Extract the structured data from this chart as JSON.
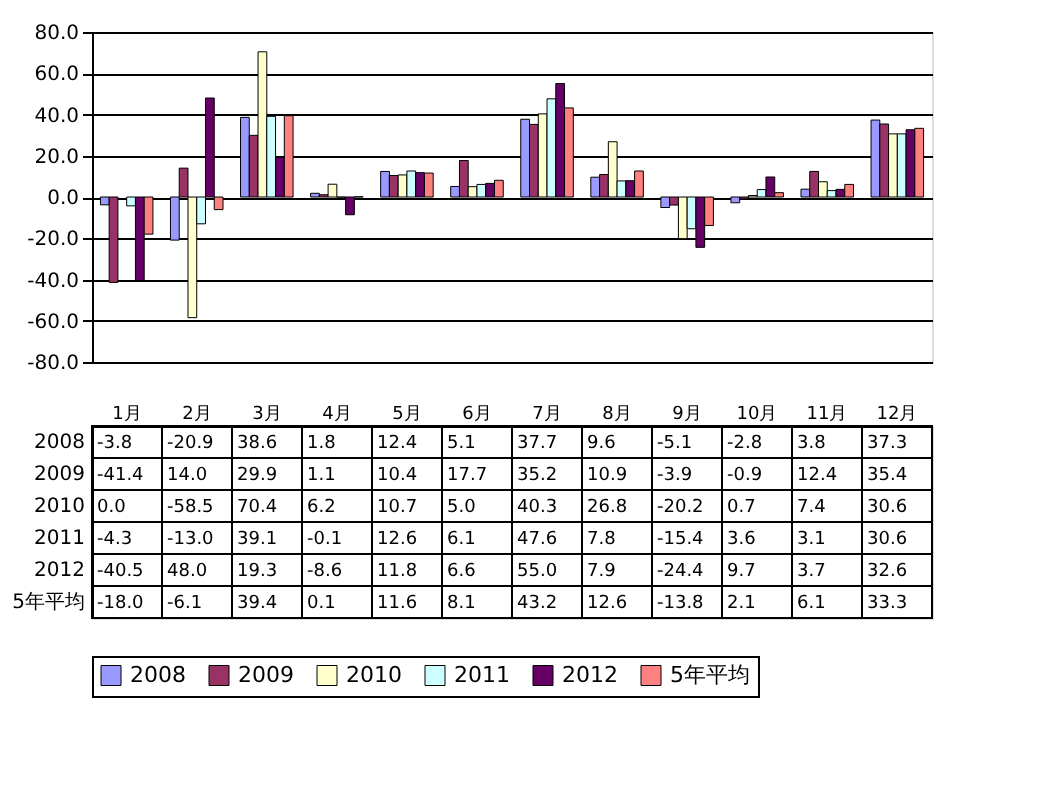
{
  "chart_data": {
    "type": "bar",
    "categories": [
      "1月",
      "2月",
      "3月",
      "4月",
      "5月",
      "6月",
      "7月",
      "8月",
      "9月",
      "10月",
      "11月",
      "12月"
    ],
    "series": [
      {
        "name": "2008",
        "color": "#9999ff",
        "values": [
          -3.8,
          -20.9,
          38.6,
          1.8,
          12.4,
          5.1,
          37.7,
          9.6,
          -5.1,
          -2.8,
          3.8,
          37.3
        ],
        "value_labels": [
          "-3.8",
          "-20.9",
          "38.6",
          "1.8",
          "12.4",
          "5.1",
          "37.7",
          "9.6",
          "-5.1",
          "-2.8",
          "3.8",
          "37.3"
        ]
      },
      {
        "name": "2009",
        "color": "#993366",
        "values": [
          -41.4,
          14.0,
          29.9,
          1.1,
          10.4,
          17.7,
          35.2,
          10.9,
          -3.9,
          -0.9,
          12.4,
          35.4
        ],
        "value_labels": [
          "-41.4",
          "14.0",
          "29.9",
          "1.1",
          "10.4",
          "17.7",
          "35.2",
          "10.9",
          "-3.9",
          "-0.9",
          "12.4",
          "35.4"
        ]
      },
      {
        "name": "2010",
        "color": "#ffffcc",
        "values": [
          0.0,
          -58.5,
          70.4,
          6.2,
          10.7,
          5.0,
          40.3,
          26.8,
          -20.2,
          0.7,
          7.4,
          30.6
        ],
        "value_labels": [
          "0.0",
          "-58.5",
          "70.4",
          "6.2",
          "10.7",
          "5.0",
          "40.3",
          "26.8",
          "-20.2",
          "0.7",
          "7.4",
          "30.6"
        ]
      },
      {
        "name": "2011",
        "color": "#ccffff",
        "values": [
          -4.3,
          -13.0,
          39.1,
          -0.1,
          12.6,
          6.1,
          47.6,
          7.8,
          -15.4,
          3.6,
          3.1,
          30.6
        ],
        "value_labels": [
          "-4.3",
          "-13.0",
          "39.1",
          "-0.1",
          "12.6",
          "6.1",
          "47.6",
          "7.8",
          "-15.4",
          "3.6",
          "3.1",
          "30.6"
        ]
      },
      {
        "name": "2012",
        "color": "#660066",
        "values": [
          -40.5,
          48.0,
          19.3,
          -8.6,
          11.8,
          6.6,
          55.0,
          7.9,
          -24.4,
          9.7,
          3.7,
          32.6
        ],
        "value_labels": [
          "-40.5",
          "48.0",
          "19.3",
          "-8.6",
          "11.8",
          "6.6",
          "55.0",
          "7.9",
          "-24.4",
          "9.7",
          "3.7",
          "32.6"
        ]
      },
      {
        "name": "5年平均",
        "color": "#ff8080",
        "values": [
          -18.0,
          -6.1,
          39.4,
          0.1,
          11.6,
          8.1,
          43.2,
          12.6,
          -13.8,
          2.1,
          6.1,
          33.3
        ],
        "value_labels": [
          "-18.0",
          "-6.1",
          "39.4",
          "0.1",
          "11.6",
          "8.1",
          "43.2",
          "12.6",
          "-13.8",
          "2.1",
          "6.1",
          "33.3"
        ]
      }
    ],
    "ylim": [
      -80,
      80
    ],
    "yticks": [
      {
        "value": -80,
        "label": "-80.0"
      },
      {
        "value": -60,
        "label": "-60.0"
      },
      {
        "value": -40,
        "label": "-40.0"
      },
      {
        "value": -20,
        "label": "-20.0"
      },
      {
        "value": 0,
        "label": "0.0"
      },
      {
        "value": 20,
        "label": "20.0"
      },
      {
        "value": 40,
        "label": "40.0"
      },
      {
        "value": 60,
        "label": "60.0"
      },
      {
        "value": 80,
        "label": "80.0"
      }
    ],
    "grid": "y",
    "legend": "bottom"
  }
}
